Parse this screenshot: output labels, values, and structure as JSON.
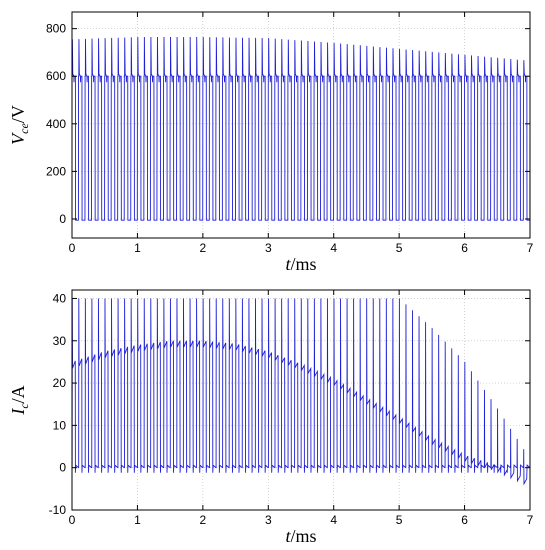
{
  "colors": {
    "series": "#1f1fd6",
    "gridline": "#b8b8b8",
    "axis": "#000000"
  },
  "chart_data": [
    {
      "type": "line",
      "title": "",
      "xlabel_var": "t",
      "xlabel_unit": "/ms",
      "ylabel_var": "V",
      "ylabel_sub": "ce",
      "ylabel_unit": "/V",
      "xlim": [
        0,
        7
      ],
      "ylim": [
        -80,
        870
      ],
      "xticks": [
        0,
        1,
        2,
        3,
        4,
        5,
        6,
        7
      ],
      "yticks": [
        0,
        200,
        400,
        600,
        800
      ],
      "grid": true,
      "series": [
        {
          "pulse_period_ms": 0.1,
          "baseline_high": 600,
          "baseline_low": -5,
          "peak_envelope": {
            "t": [
              0,
              1,
              2,
              3,
              4,
              5,
              6,
              7
            ],
            "v": [
              755,
              765,
              765,
              760,
              740,
              715,
              690,
              665
            ]
          }
        }
      ]
    },
    {
      "type": "line",
      "title": "",
      "xlabel_var": "t",
      "xlabel_unit": "/ms",
      "ylabel_var": "I",
      "ylabel_sub": "c",
      "ylabel_unit": "/A",
      "xlim": [
        0,
        7
      ],
      "ylim": [
        -10,
        42
      ],
      "xticks": [
        0,
        1,
        2,
        3,
        4,
        5,
        6,
        7
      ],
      "yticks": [
        -10,
        0,
        10,
        20,
        30,
        40
      ],
      "grid": true,
      "series": [
        {
          "pulse_period_ms": 0.1,
          "peak_envelope": {
            "t": [
              0,
              5.0,
              5.5,
              6.0,
              6.5,
              7.0
            ],
            "v": [
              40,
              40,
              33,
              25,
              14,
              2
            ]
          },
          "plateau_envelope": {
            "t": [
              0,
              0.5,
              1,
              1.5,
              2,
              2.5,
              3,
              3.5,
              4,
              4.5,
              5,
              5.5,
              6,
              6.5,
              7
            ],
            "v": [
              25,
              27.5,
              29,
              30,
              30,
              29.3,
              27.5,
              24.5,
              21,
              16.5,
              12,
              7,
              3,
              0.5,
              -3
            ]
          }
        }
      ]
    }
  ]
}
